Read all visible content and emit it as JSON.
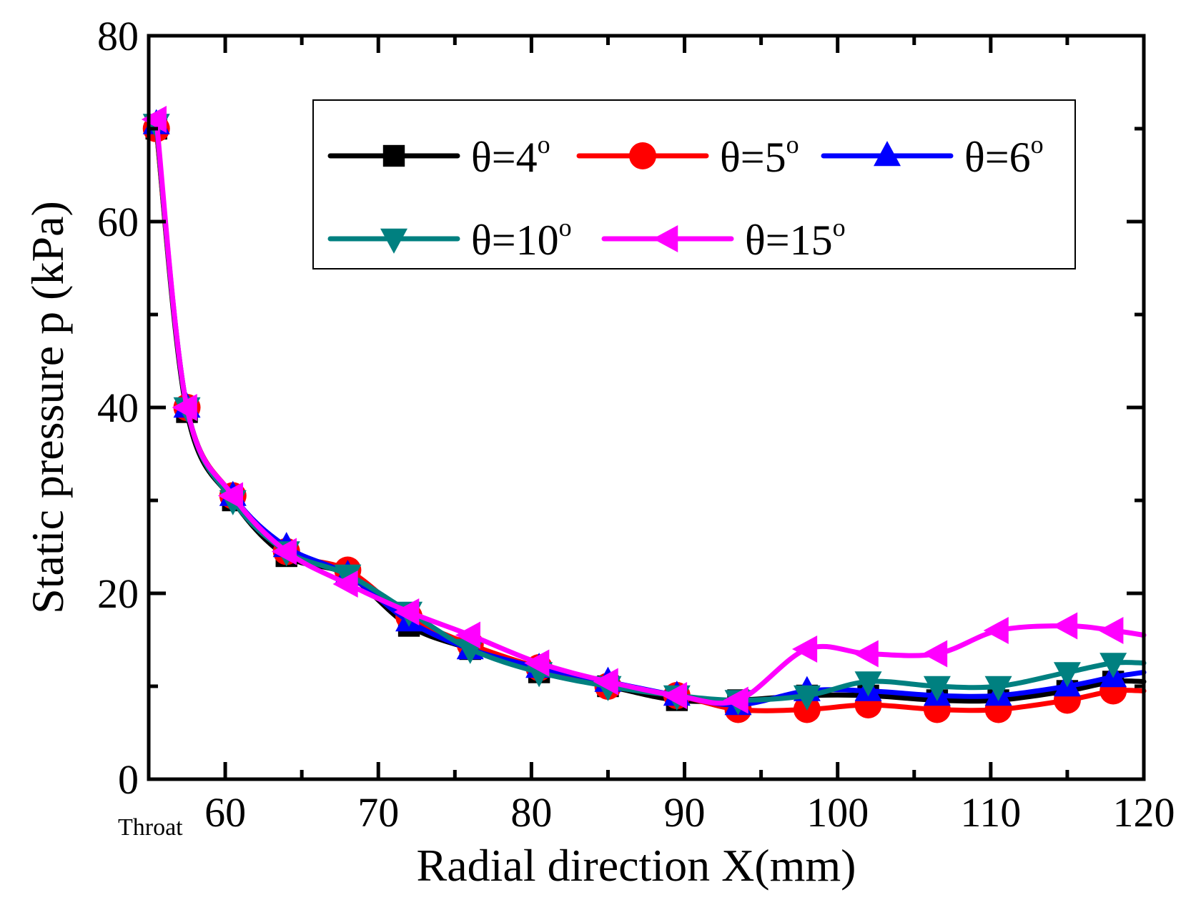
{
  "chart_data": {
    "type": "line",
    "title": "",
    "xlabel": "Radial direction X(mm)",
    "ylabel": "Static pressure p (kPa)",
    "xlim": [
      55,
      120
    ],
    "ylim": [
      0,
      80
    ],
    "xticks": [
      60,
      70,
      80,
      90,
      100,
      110,
      120
    ],
    "yticks": [
      0,
      20,
      40,
      60,
      80
    ],
    "x_annotation": "Throat",
    "legend_position": "top-right",
    "grid": false,
    "series": [
      {
        "name": "θ=4",
        "legend_label": "θ=4",
        "degree_mark": "o",
        "color": "#000000",
        "marker": "square",
        "x": [
          55.5,
          57.5,
          60.5,
          64.0,
          68.0,
          72.0,
          76.0,
          80.5,
          85.0,
          89.5,
          93.5,
          98.0,
          102.0,
          106.5,
          110.5,
          115.0,
          118.0,
          120.0
        ],
        "y": [
          70.0,
          39.5,
          30.0,
          24.0,
          22.0,
          16.5,
          14.0,
          11.5,
          10.0,
          8.5,
          8.5,
          9.0,
          9.0,
          8.5,
          8.5,
          9.5,
          10.5,
          10.5
        ]
      },
      {
        "name": "θ=5",
        "legend_label": "θ=5",
        "degree_mark": "o",
        "color": "#ff0000",
        "marker": "circle",
        "x": [
          55.5,
          57.5,
          60.5,
          64.0,
          68.0,
          72.0,
          76.0,
          80.5,
          85.0,
          89.5,
          93.5,
          98.0,
          102.0,
          106.5,
          110.5,
          115.0,
          118.0,
          120.0
        ],
        "y": [
          70.0,
          40.0,
          30.5,
          24.5,
          22.5,
          17.5,
          14.5,
          12.0,
          10.0,
          9.0,
          7.5,
          7.5,
          8.0,
          7.5,
          7.5,
          8.5,
          9.5,
          9.5
        ]
      },
      {
        "name": "θ=6",
        "legend_label": "θ=6",
        "degree_mark": "o",
        "color": "#0000ff",
        "marker": "triangle-up",
        "x": [
          55.5,
          57.5,
          60.5,
          64.0,
          68.0,
          72.0,
          76.0,
          80.5,
          85.0,
          89.5,
          93.5,
          98.0,
          102.0,
          106.5,
          110.5,
          115.0,
          118.0,
          120.0
        ],
        "y": [
          70.5,
          40.0,
          30.5,
          25.0,
          22.0,
          17.0,
          14.0,
          12.0,
          10.5,
          9.0,
          8.0,
          9.5,
          9.5,
          9.0,
          9.0,
          10.0,
          11.0,
          11.5
        ]
      },
      {
        "name": "θ=10",
        "legend_label": "θ=10",
        "degree_mark": "o",
        "color": "#008080",
        "marker": "triangle-down",
        "x": [
          55.5,
          57.5,
          60.5,
          64.0,
          68.0,
          72.0,
          76.0,
          80.5,
          85.0,
          89.5,
          93.5,
          98.0,
          102.0,
          106.5,
          110.5,
          115.0,
          118.0,
          120.0
        ],
        "y": [
          70.5,
          40.0,
          30.0,
          24.5,
          22.0,
          18.0,
          14.0,
          11.5,
          10.0,
          9.0,
          8.5,
          9.0,
          10.5,
          10.0,
          10.0,
          11.5,
          12.5,
          12.5
        ]
      },
      {
        "name": "θ=15",
        "legend_label": "θ=15",
        "degree_mark": "o",
        "color": "#ff00ff",
        "marker": "triangle-left",
        "x": [
          55.5,
          57.5,
          60.5,
          64.0,
          68.0,
          72.0,
          76.0,
          80.5,
          85.0,
          89.5,
          93.5,
          98.0,
          102.0,
          106.5,
          110.5,
          115.0,
          118.0,
          120.0
        ],
        "y": [
          71.0,
          40.0,
          30.5,
          24.5,
          21.0,
          18.0,
          15.5,
          12.5,
          10.5,
          9.0,
          8.5,
          14.0,
          13.5,
          13.5,
          16.0,
          16.5,
          16.0,
          15.5
        ]
      }
    ]
  }
}
